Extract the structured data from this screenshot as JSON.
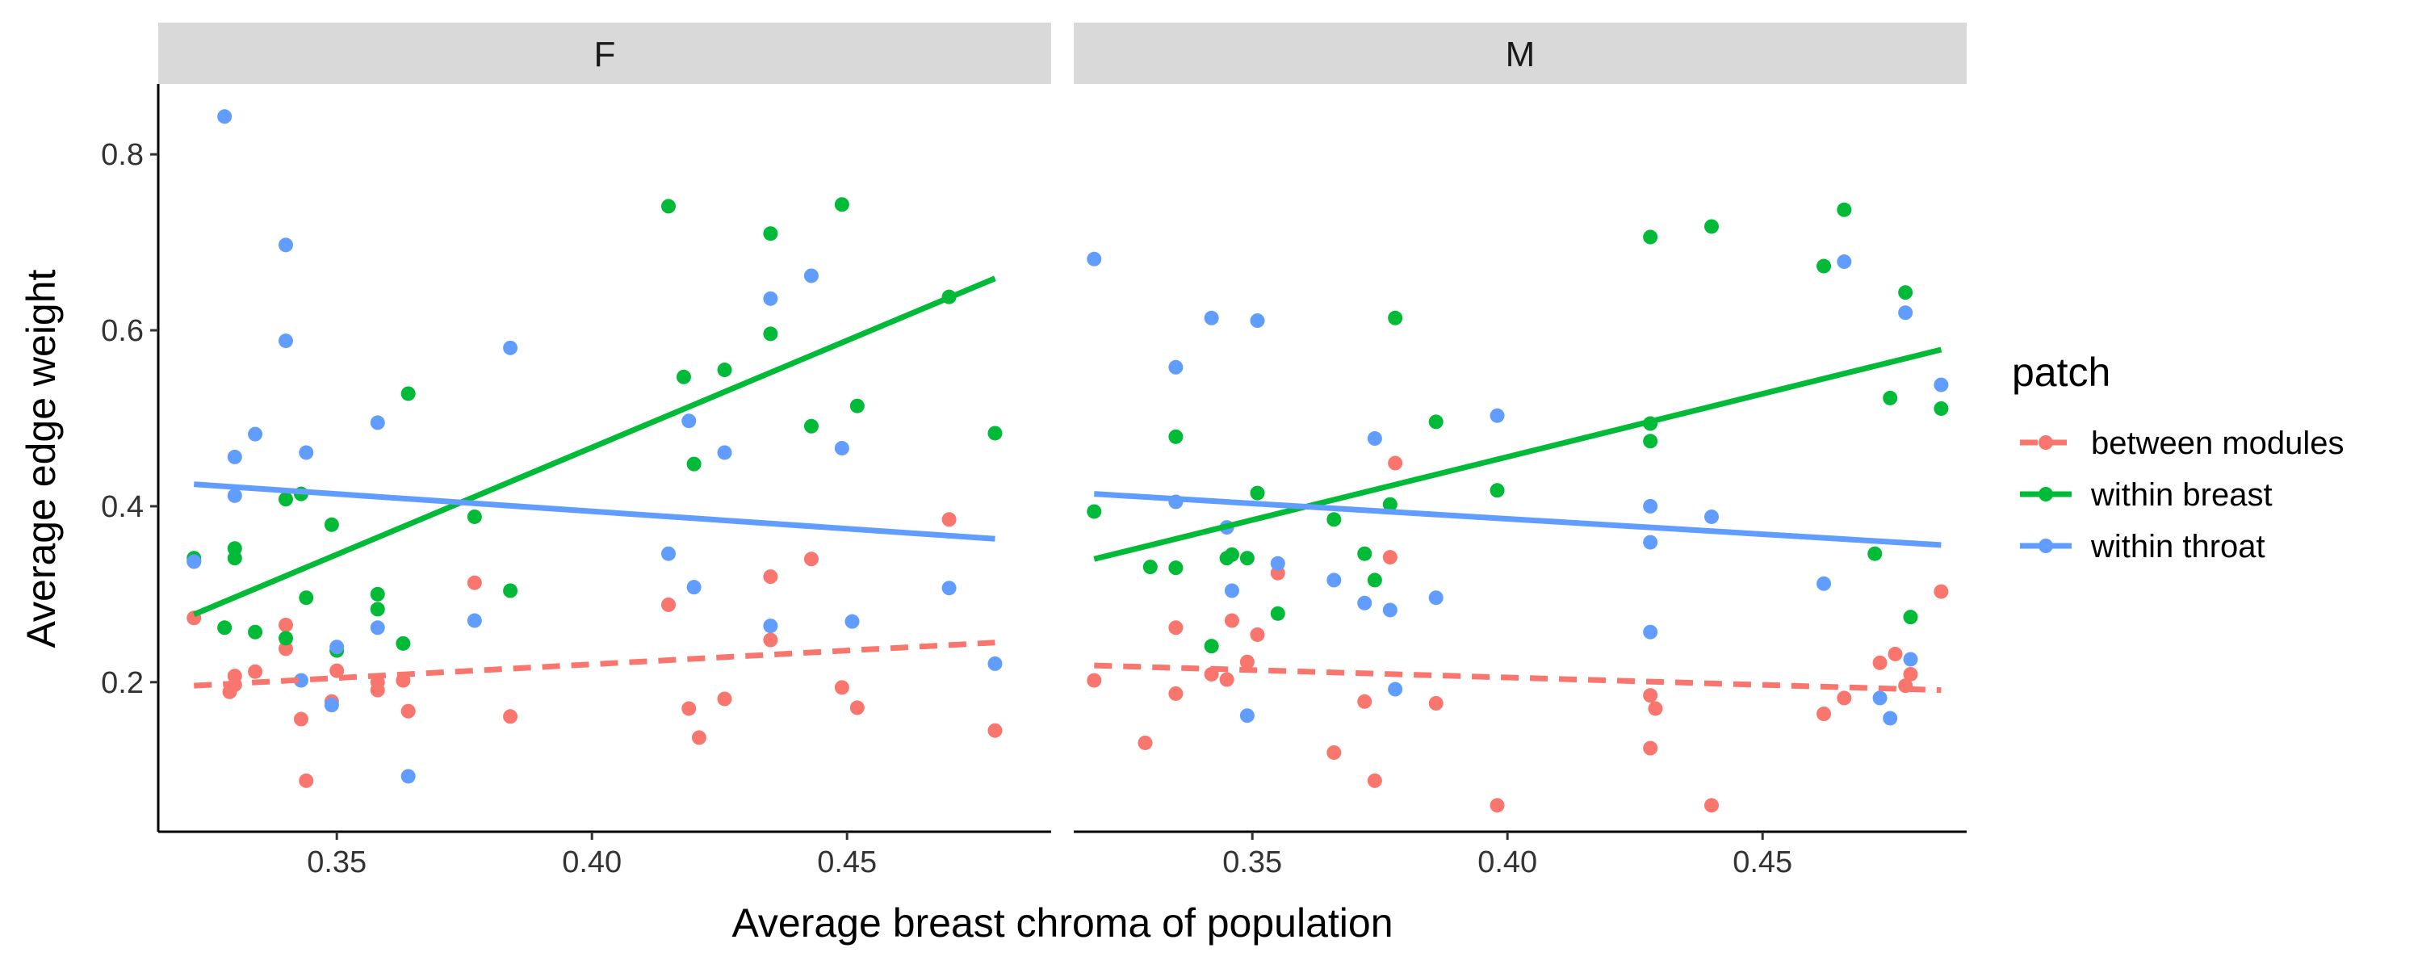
{
  "chart_data": {
    "type": "scatter",
    "facets": [
      "F",
      "M"
    ],
    "xlabel": "Average breast chroma of population",
    "ylabel": "Average edge weight",
    "xlim": [
      0.315,
      0.49
    ],
    "ylim": [
      0.03,
      0.88
    ],
    "x_ticks": [
      0.35,
      0.4,
      0.45
    ],
    "x_tick_labels": [
      "0.35",
      "0.40",
      "0.45"
    ],
    "y_ticks": [
      0.2,
      0.4,
      0.6,
      0.8
    ],
    "y_tick_labels": [
      "0.2",
      "0.4",
      "0.6",
      "0.8"
    ],
    "grid": false,
    "legend": {
      "title": "patch",
      "position": "right",
      "entries": [
        "between modules",
        "within breast",
        "within throat"
      ]
    },
    "colors": {
      "between modules": "#F8766D",
      "within breast": "#00BA38",
      "within throat": "#619CFF"
    },
    "series": [
      {
        "name": "between modules",
        "facet": "F",
        "points": [
          [
            0.322,
            0.273
          ],
          [
            0.329,
            0.189
          ],
          [
            0.33,
            0.207
          ],
          [
            0.33,
            0.197
          ],
          [
            0.334,
            0.212
          ],
          [
            0.34,
            0.265
          ],
          [
            0.34,
            0.238
          ],
          [
            0.343,
            0.158
          ],
          [
            0.344,
            0.088
          ],
          [
            0.349,
            0.178
          ],
          [
            0.35,
            0.213
          ],
          [
            0.358,
            0.191
          ],
          [
            0.358,
            0.2
          ],
          [
            0.363,
            0.202
          ],
          [
            0.364,
            0.167
          ],
          [
            0.377,
            0.313
          ],
          [
            0.384,
            0.161
          ],
          [
            0.415,
            0.288
          ],
          [
            0.419,
            0.17
          ],
          [
            0.421,
            0.137
          ],
          [
            0.426,
            0.181
          ],
          [
            0.435,
            0.248
          ],
          [
            0.435,
            0.32
          ],
          [
            0.443,
            0.34
          ],
          [
            0.449,
            0.194
          ],
          [
            0.452,
            0.171
          ],
          [
            0.47,
            0.385
          ],
          [
            0.479,
            0.145
          ]
        ],
        "trend": {
          "x": [
            0.322,
            0.479
          ],
          "y": [
            0.196,
            0.245
          ],
          "dashed": true
        }
      },
      {
        "name": "within breast",
        "facet": "F",
        "points": [
          [
            0.322,
            0.341
          ],
          [
            0.322,
            0.338
          ],
          [
            0.328,
            0.262
          ],
          [
            0.33,
            0.352
          ],
          [
            0.33,
            0.341
          ],
          [
            0.334,
            0.257
          ],
          [
            0.34,
            0.408
          ],
          [
            0.34,
            0.25
          ],
          [
            0.343,
            0.414
          ],
          [
            0.344,
            0.296
          ],
          [
            0.349,
            0.379
          ],
          [
            0.35,
            0.236
          ],
          [
            0.358,
            0.3
          ],
          [
            0.358,
            0.283
          ],
          [
            0.363,
            0.244
          ],
          [
            0.364,
            0.528
          ],
          [
            0.377,
            0.388
          ],
          [
            0.384,
            0.304
          ],
          [
            0.415,
            0.741
          ],
          [
            0.418,
            0.547
          ],
          [
            0.42,
            0.448
          ],
          [
            0.426,
            0.555
          ],
          [
            0.435,
            0.596
          ],
          [
            0.435,
            0.71
          ],
          [
            0.443,
            0.491
          ],
          [
            0.449,
            0.743
          ],
          [
            0.452,
            0.514
          ],
          [
            0.47,
            0.638
          ],
          [
            0.479,
            0.483
          ]
        ],
        "trend": {
          "x": [
            0.322,
            0.479
          ],
          "y": [
            0.277,
            0.659
          ],
          "dashed": false
        }
      },
      {
        "name": "within throat",
        "facet": "F",
        "points": [
          [
            0.322,
            0.337
          ],
          [
            0.328,
            0.843
          ],
          [
            0.33,
            0.456
          ],
          [
            0.33,
            0.412
          ],
          [
            0.334,
            0.482
          ],
          [
            0.34,
            0.697
          ],
          [
            0.34,
            0.588
          ],
          [
            0.343,
            0.202
          ],
          [
            0.344,
            0.461
          ],
          [
            0.349,
            0.174
          ],
          [
            0.35,
            0.24
          ],
          [
            0.358,
            0.495
          ],
          [
            0.358,
            0.262
          ],
          [
            0.364,
            0.093
          ],
          [
            0.377,
            0.27
          ],
          [
            0.384,
            0.58
          ],
          [
            0.415,
            0.346
          ],
          [
            0.419,
            0.497
          ],
          [
            0.42,
            0.308
          ],
          [
            0.426,
            0.461
          ],
          [
            0.435,
            0.636
          ],
          [
            0.435,
            0.264
          ],
          [
            0.443,
            0.662
          ],
          [
            0.449,
            0.466
          ],
          [
            0.451,
            0.269
          ],
          [
            0.47,
            0.307
          ],
          [
            0.479,
            0.221
          ]
        ],
        "trend": {
          "x": [
            0.322,
            0.479
          ],
          "y": [
            0.425,
            0.363
          ],
          "dashed": false
        }
      },
      {
        "name": "between modules",
        "facet": "M",
        "points": [
          [
            0.319,
            0.202
          ],
          [
            0.329,
            0.131
          ],
          [
            0.335,
            0.187
          ],
          [
            0.335,
            0.262
          ],
          [
            0.342,
            0.209
          ],
          [
            0.345,
            0.203
          ],
          [
            0.346,
            0.27
          ],
          [
            0.349,
            0.223
          ],
          [
            0.351,
            0.254
          ],
          [
            0.355,
            0.324
          ],
          [
            0.366,
            0.12
          ],
          [
            0.372,
            0.178
          ],
          [
            0.374,
            0.088
          ],
          [
            0.377,
            0.342
          ],
          [
            0.378,
            0.449
          ],
          [
            0.386,
            0.176
          ],
          [
            0.398,
            0.06
          ],
          [
            0.428,
            0.185
          ],
          [
            0.428,
            0.125
          ],
          [
            0.429,
            0.17
          ],
          [
            0.44,
            0.06
          ],
          [
            0.462,
            0.164
          ],
          [
            0.466,
            0.182
          ],
          [
            0.473,
            0.222
          ],
          [
            0.476,
            0.232
          ],
          [
            0.478,
            0.196
          ],
          [
            0.479,
            0.209
          ],
          [
            0.485,
            0.303
          ]
        ],
        "trend": {
          "x": [
            0.319,
            0.485
          ],
          "y": [
            0.219,
            0.191
          ],
          "dashed": true
        }
      },
      {
        "name": "within breast",
        "facet": "M",
        "points": [
          [
            0.319,
            0.394
          ],
          [
            0.33,
            0.331
          ],
          [
            0.335,
            0.479
          ],
          [
            0.335,
            0.33
          ],
          [
            0.342,
            0.241
          ],
          [
            0.345,
            0.341
          ],
          [
            0.346,
            0.345
          ],
          [
            0.349,
            0.341
          ],
          [
            0.351,
            0.415
          ],
          [
            0.355,
            0.278
          ],
          [
            0.366,
            0.385
          ],
          [
            0.372,
            0.346
          ],
          [
            0.374,
            0.316
          ],
          [
            0.377,
            0.402
          ],
          [
            0.378,
            0.614
          ],
          [
            0.386,
            0.496
          ],
          [
            0.398,
            0.418
          ],
          [
            0.428,
            0.706
          ],
          [
            0.428,
            0.494
          ],
          [
            0.428,
            0.474
          ],
          [
            0.44,
            0.718
          ],
          [
            0.462,
            0.673
          ],
          [
            0.466,
            0.737
          ],
          [
            0.472,
            0.346
          ],
          [
            0.475,
            0.523
          ],
          [
            0.478,
            0.643
          ],
          [
            0.479,
            0.274
          ],
          [
            0.485,
            0.511
          ]
        ],
        "trend": {
          "x": [
            0.319,
            0.485
          ],
          "y": [
            0.34,
            0.578
          ],
          "dashed": false
        }
      },
      {
        "name": "within throat",
        "facet": "M",
        "points": [
          [
            0.319,
            0.681
          ],
          [
            0.335,
            0.558
          ],
          [
            0.335,
            0.405
          ],
          [
            0.342,
            0.614
          ],
          [
            0.345,
            0.376
          ],
          [
            0.346,
            0.304
          ],
          [
            0.349,
            0.162
          ],
          [
            0.351,
            0.611
          ],
          [
            0.355,
            0.335
          ],
          [
            0.366,
            0.316
          ],
          [
            0.372,
            0.29
          ],
          [
            0.374,
            0.477
          ],
          [
            0.377,
            0.282
          ],
          [
            0.378,
            0.192
          ],
          [
            0.386,
            0.296
          ],
          [
            0.398,
            0.503
          ],
          [
            0.428,
            0.359
          ],
          [
            0.428,
            0.257
          ],
          [
            0.428,
            0.4
          ],
          [
            0.44,
            0.388
          ],
          [
            0.462,
            0.312
          ],
          [
            0.466,
            0.678
          ],
          [
            0.473,
            0.182
          ],
          [
            0.475,
            0.159
          ],
          [
            0.478,
            0.62
          ],
          [
            0.479,
            0.226
          ],
          [
            0.485,
            0.538
          ]
        ],
        "trend": {
          "x": [
            0.319,
            0.485
          ],
          "y": [
            0.414,
            0.356
          ],
          "dashed": false
        }
      }
    ]
  }
}
